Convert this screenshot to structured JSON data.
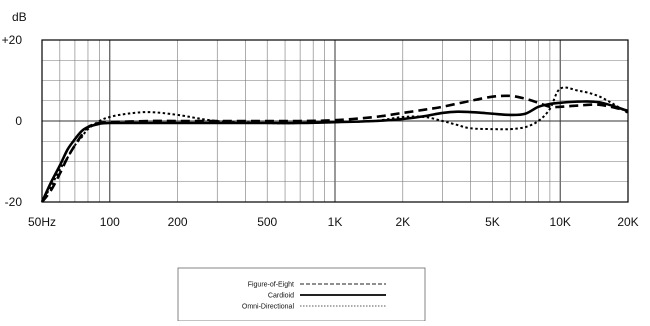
{
  "chart_data": {
    "type": "line",
    "title": "",
    "ylabel": "dB",
    "xlabel": "",
    "x_scale": "log",
    "xlim": [
      50,
      20000
    ],
    "ylim": [
      -20,
      20
    ],
    "grid": true,
    "legend_position": "bottom-center",
    "x_ticks": [
      {
        "value": 50,
        "label": "50Hz"
      },
      {
        "value": 100,
        "label": "100"
      },
      {
        "value": 200,
        "label": "200"
      },
      {
        "value": 500,
        "label": "500"
      },
      {
        "value": 1000,
        "label": "1K"
      },
      {
        "value": 2000,
        "label": "2K"
      },
      {
        "value": 5000,
        "label": "5K"
      },
      {
        "value": 10000,
        "label": "10K"
      },
      {
        "value": 20000,
        "label": "20K"
      }
    ],
    "y_ticks": [
      {
        "value": 20,
        "label": "+20"
      },
      {
        "value": 0,
        "label": "0"
      },
      {
        "value": -20,
        "label": "-20"
      }
    ],
    "series": [
      {
        "name": "Figure-of-Eight",
        "style": "dotted",
        "x": [
          50,
          55,
          60,
          65,
          70,
          75,
          80,
          90,
          100,
          120,
          150,
          200,
          300,
          500,
          700,
          1000,
          1500,
          2000,
          2500,
          3000,
          3500,
          4000,
          5000,
          6000,
          7000,
          8000,
          9000,
          10000,
          12000,
          15000,
          20000
        ],
        "y": [
          -20,
          -16,
          -12,
          -9,
          -6,
          -4,
          -2,
          0,
          1,
          1.8,
          2.2,
          1.5,
          0,
          -0.5,
          -0.5,
          -0.3,
          0,
          1,
          1,
          0,
          -1,
          -1.8,
          -2,
          -2,
          -1.5,
          0,
          3,
          8,
          7.5,
          6,
          2
        ]
      },
      {
        "name": "Cardioid",
        "style": "solid",
        "x": [
          50,
          55,
          60,
          65,
          70,
          75,
          80,
          90,
          100,
          150,
          200,
          300,
          500,
          700,
          1000,
          1500,
          2000,
          2500,
          3000,
          3500,
          4000,
          5000,
          6000,
          7000,
          8000,
          9000,
          10000,
          12000,
          15000,
          20000
        ],
        "y": [
          -20,
          -15,
          -11,
          -7,
          -4.5,
          -2.5,
          -1.5,
          -0.7,
          -0.5,
          -0.5,
          -0.5,
          -0.5,
          -0.5,
          -0.5,
          -0.3,
          0,
          0.5,
          1.2,
          2,
          2.3,
          2.2,
          1.8,
          1.5,
          1.8,
          3.5,
          4.2,
          4.5,
          4.8,
          4.6,
          2.5
        ]
      },
      {
        "name": "Omni-Directional",
        "style": "dashed",
        "x": [
          50,
          55,
          60,
          65,
          70,
          75,
          80,
          90,
          100,
          150,
          200,
          300,
          500,
          700,
          1000,
          1500,
          2000,
          2500,
          3000,
          4000,
          5000,
          6000,
          7000,
          8000,
          9000,
          10000,
          12000,
          15000,
          20000
        ],
        "y": [
          -20,
          -17,
          -13,
          -9,
          -6,
          -3.5,
          -1.5,
          -0.5,
          -0.3,
          0,
          0,
          0,
          0,
          0,
          0.2,
          1,
          2,
          2.8,
          3.5,
          5,
          6,
          6.2,
          5.5,
          4.5,
          3.5,
          3.5,
          3.8,
          4,
          2.5
        ]
      }
    ]
  }
}
